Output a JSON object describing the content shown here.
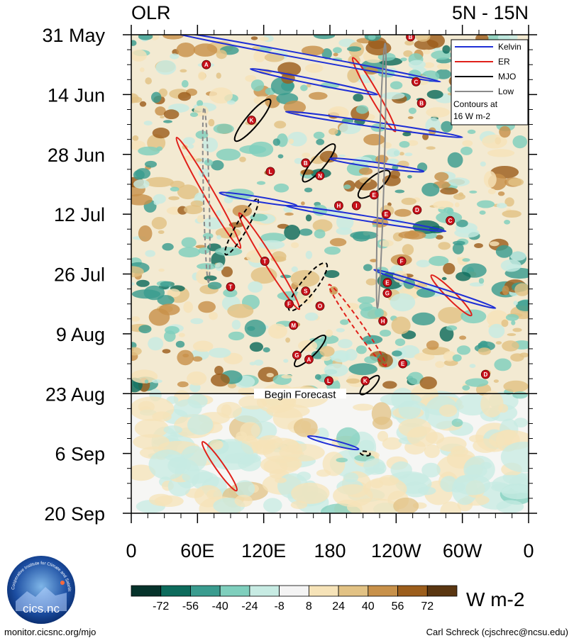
{
  "chart_data": {
    "type": "heatmap",
    "title_left": "OLR",
    "title_right": "5N - 15N",
    "x_tick_labels": [
      "0",
      "60E",
      "120E",
      "180",
      "120W",
      "60W",
      "0"
    ],
    "x_range_deg": [
      0,
      360
    ],
    "y_tick_labels": [
      "31 May",
      "14 Jun",
      "28 Jun",
      "12 Jul",
      "26 Jul",
      "9 Aug",
      "23 Aug",
      "6 Sep",
      "20 Sep"
    ],
    "y_range_days": [
      0,
      112
    ],
    "forecast_start_day": 84,
    "forecast_label": "Begin Forecast",
    "colorbar": {
      "levels": [
        "-72",
        "-56",
        "-40",
        "-24",
        "-8",
        "8",
        "24",
        "40",
        "56",
        "72"
      ],
      "colors": [
        "#06332b",
        "#0d6b5c",
        "#3a9c8f",
        "#7fcfbd",
        "#c7ebe3",
        "#f4f4f4",
        "#f6e3b8",
        "#e2c284",
        "#c8914a",
        "#9c5e1c",
        "#5a3611"
      ],
      "units": "W m-2"
    },
    "legend": {
      "items": [
        {
          "label": "Kelvin",
          "color": "#1f2fd6"
        },
        {
          "label": "ER",
          "color": "#e0201a"
        },
        {
          "label": "MJO",
          "color": "#000000"
        },
        {
          "label": "Low",
          "color": "#8a8a8a"
        }
      ],
      "note_line1": "Contours at",
      "note_line2": "16 W m-2"
    },
    "storms": [
      {
        "label": "B",
        "lon": 253,
        "day": 0.5
      },
      {
        "label": "A",
        "lon": 68,
        "day": 7
      },
      {
        "label": "C",
        "lon": 258,
        "day": 11
      },
      {
        "label": "B",
        "lon": 263,
        "day": 16
      },
      {
        "label": "K",
        "lon": 109,
        "day": 20
      },
      {
        "label": "B",
        "lon": 158,
        "day": 30
      },
      {
        "label": "L",
        "lon": 126,
        "day": 32
      },
      {
        "label": "N",
        "lon": 171,
        "day": 33
      },
      {
        "label": "E",
        "lon": 220,
        "day": 37.5
      },
      {
        "label": "H",
        "lon": 188,
        "day": 40
      },
      {
        "label": "I",
        "lon": 204,
        "day": 40
      },
      {
        "label": "D",
        "lon": 259,
        "day": 41
      },
      {
        "label": "E",
        "lon": 231,
        "day": 42
      },
      {
        "label": "C",
        "lon": 289,
        "day": 43.5
      },
      {
        "label": "T",
        "lon": 121,
        "day": 53
      },
      {
        "label": "F",
        "lon": 245,
        "day": 53
      },
      {
        "label": "T",
        "lon": 90,
        "day": 59
      },
      {
        "label": "E",
        "lon": 232,
        "day": 58
      },
      {
        "label": "S",
        "lon": 158,
        "day": 60
      },
      {
        "label": "G",
        "lon": 232,
        "day": 60.5
      },
      {
        "label": "F",
        "lon": 143,
        "day": 63
      },
      {
        "label": "O",
        "lon": 171,
        "day": 63.5
      },
      {
        "label": "H",
        "lon": 228,
        "day": 67
      },
      {
        "label": "M",
        "lon": 147,
        "day": 68
      },
      {
        "label": "G",
        "lon": 150,
        "day": 75
      },
      {
        "label": "A",
        "lon": 161,
        "day": 76
      },
      {
        "label": "E",
        "lon": 246,
        "day": 77
      },
      {
        "label": "D",
        "lon": 321,
        "day": 79.5
      },
      {
        "label": "L",
        "lon": 179,
        "day": 81
      },
      {
        "label": "K",
        "lon": 212,
        "day": 81
      }
    ],
    "kelvin_contours": [
      {
        "lon0": 30,
        "day0": -1,
        "lon1": 280,
        "day1": 11
      },
      {
        "lon0": 108,
        "day0": 8,
        "lon1": 223,
        "day1": 14
      },
      {
        "lon0": 140,
        "day0": 18,
        "lon1": 300,
        "day1": 24
      },
      {
        "lon0": 180,
        "day0": 29,
        "lon1": 265,
        "day1": 32
      },
      {
        "lon0": 80,
        "day0": 37,
        "lon1": 150,
        "day1": 40
      },
      {
        "lon0": 140,
        "day0": 40,
        "lon1": 285,
        "day1": 46
      },
      {
        "lon0": 220,
        "day0": 55,
        "lon1": 330,
        "day1": 64
      },
      {
        "lon0": 160,
        "day0": 94,
        "lon1": 206,
        "day1": 97
      }
    ],
    "mjo_contours": [
      {
        "lon": 110,
        "day": 20,
        "rx": 38,
        "ry": 9,
        "angle": -50,
        "dashed": false
      },
      {
        "lon": 170,
        "day": 30,
        "rx": 34,
        "ry": 9,
        "angle": -50,
        "dashed": false
      },
      {
        "lon": 220,
        "day": 35,
        "rx": 28,
        "ry": 10,
        "angle": -40,
        "dashed": false
      },
      {
        "lon": 160,
        "day": 59,
        "rx": 42,
        "ry": 11,
        "angle": -52,
        "dashed": true
      },
      {
        "lon": 162,
        "day": 74,
        "rx": 30,
        "ry": 8,
        "angle": -45,
        "dashed": false
      },
      {
        "lon": 216,
        "day": 82,
        "rx": 18,
        "ry": 6,
        "angle": -45,
        "dashed": false
      },
      {
        "lon": 100,
        "day": 45,
        "rx": 45,
        "ry": 8,
        "angle": -60,
        "dashed": true
      },
      {
        "lon": 212,
        "day": 98,
        "rx": 7,
        "ry": 3,
        "angle": 10,
        "dashed": true
      }
    ],
    "er_contours": [
      {
        "lon": 70,
        "day": 37,
        "rx": 90,
        "ry": 7,
        "angle": 60,
        "dashed": false
      },
      {
        "lon": 125,
        "day": 53,
        "rx": 80,
        "ry": 7,
        "angle": 58,
        "dashed": false
      },
      {
        "lon": 205,
        "day": 68,
        "rx": 70,
        "ry": 6,
        "angle": 55,
        "dashed": true
      },
      {
        "lon": 290,
        "day": 61,
        "rx": 40,
        "ry": 6,
        "angle": 45,
        "dashed": false
      },
      {
        "lon": 80,
        "day": 101,
        "rx": 42,
        "ry": 6,
        "angle": 55,
        "dashed": false
      },
      {
        "lon": 220,
        "day": 14,
        "rx": 60,
        "ry": 6,
        "angle": 60,
        "dashed": false
      }
    ],
    "low_contours": [
      {
        "lon0": 66,
        "day0": 17,
        "lon1": 70,
        "day1": 58
      },
      {
        "lon0": 230,
        "day0": 2,
        "lon1": 223,
        "day1": 64
      }
    ]
  },
  "footer": {
    "left_text": "monitor.cicsnc.org/mjo",
    "right_text": "Carl Schreck (cjschrec@ncsu.edu)",
    "logo_text": "cics.nc",
    "logo_arc_text": "Cooperative Institute for Climate and Satellites"
  }
}
